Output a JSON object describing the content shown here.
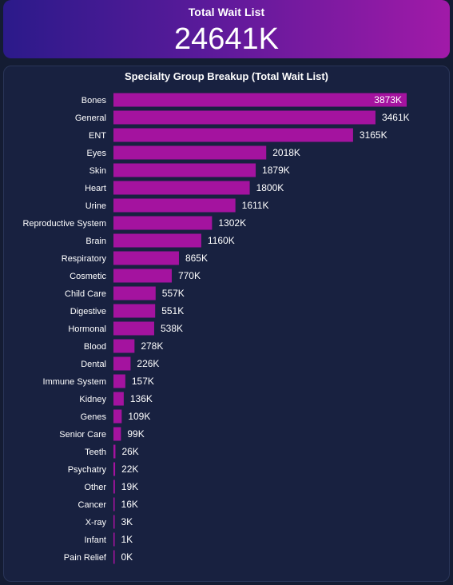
{
  "kpi": {
    "title": "Total Wait List",
    "value": "24641K"
  },
  "colors": {
    "bar": "#a4139f",
    "card_bg": "#182140",
    "page_bg": "#141c33"
  },
  "chart_data": {
    "type": "bar",
    "orientation": "horizontal",
    "title": "Specialty Group Breakup (Total Wait List)",
    "xlabel": "",
    "ylabel": "",
    "grid": false,
    "legend": "none",
    "xlim": [
      0,
      3873
    ],
    "categories": [
      "Bones",
      "General",
      "ENT",
      "Eyes",
      "Skin",
      "Heart",
      "Urine",
      "Reproductive System",
      "Brain",
      "Respiratory",
      "Cosmetic",
      "Child Care",
      "Digestive",
      "Hormonal",
      "Blood",
      "Dental",
      "Immune System",
      "Kidney",
      "Genes",
      "Senior Care",
      "Teeth",
      "Psychatry",
      "Other",
      "Cancer",
      "X-ray",
      "Infant",
      "Pain Relief"
    ],
    "values": [
      3873,
      3461,
      3165,
      2018,
      1879,
      1800,
      1611,
      1302,
      1160,
      865,
      770,
      557,
      551,
      538,
      278,
      226,
      157,
      136,
      109,
      99,
      26,
      22,
      19,
      16,
      3,
      1,
      0
    ],
    "value_labels": [
      "3873K",
      "3461K",
      "3165K",
      "2018K",
      "1879K",
      "1800K",
      "1611K",
      "1302K",
      "1160K",
      "865K",
      "770K",
      "557K",
      "551K",
      "538K",
      "278K",
      "226K",
      "157K",
      "136K",
      "109K",
      "99K",
      "26K",
      "22K",
      "19K",
      "16K",
      "3K",
      "1K",
      "0K"
    ]
  }
}
